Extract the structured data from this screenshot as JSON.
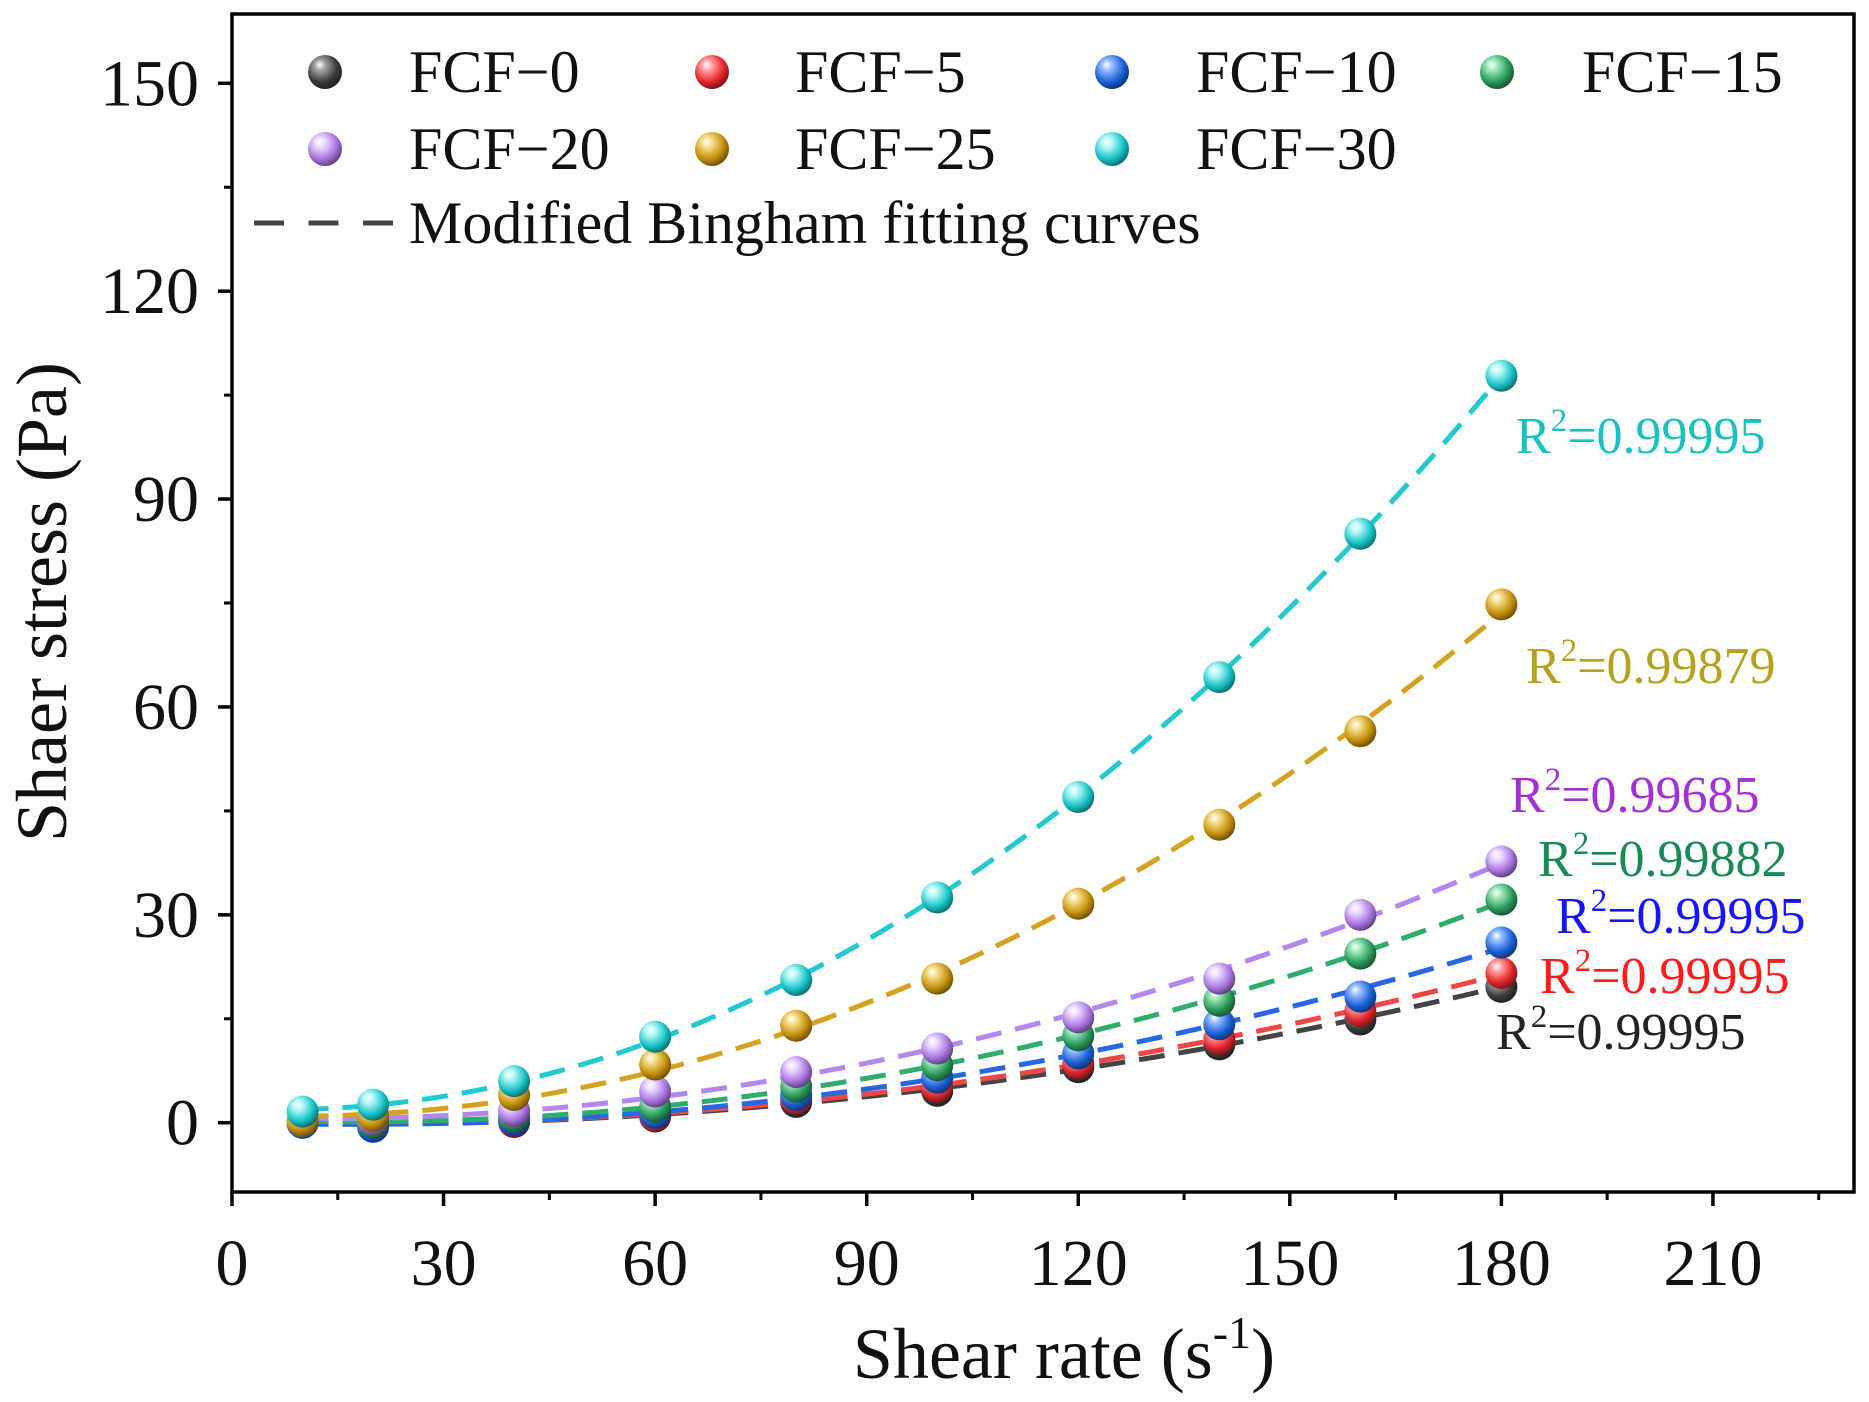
{
  "chart_data": {
    "type": "scatter",
    "xlabel": "Shear rate (s",
    "xlabel_sup": "-1",
    "xlabel_end": ")",
    "ylabel": "Shaer stress (Pa)",
    "xlim": [
      0,
      230
    ],
    "ylim": [
      -10,
      160
    ],
    "x_ticks": [
      0,
      30,
      60,
      90,
      120,
      150,
      180,
      210
    ],
    "y_ticks": [
      0,
      30,
      60,
      90,
      120,
      150
    ],
    "grid": false,
    "legend_position": "top",
    "fit_legend": "Modified Bingham fitting curves",
    "fit_legend_color": "#444444",
    "x": [
      10,
      20,
      40,
      60,
      80,
      100,
      120,
      140,
      160,
      180
    ],
    "series": [
      {
        "name": "FCF−0",
        "values": [
          0.0,
          -0.3,
          0.1,
          0.9,
          3.0,
          4.6,
          8.0,
          11.3,
          14.9,
          19.6
        ],
        "color": "#3a3a3a",
        "light": "#a0a0a0",
        "line": "#444444",
        "r2": {
          "prefix": "R",
          "sup": "2",
          "value": "=0.99995"
        },
        "r2_color": "#222222"
      },
      {
        "name": "FCF−5",
        "values": [
          0.0,
          -0.2,
          0.2,
          1.0,
          3.5,
          5.2,
          8.6,
          12.1,
          16.1,
          21.6
        ],
        "color": "#e3262b",
        "light": "#ffa0a0",
        "line": "#ef4646",
        "r2": {
          "prefix": "R",
          "sup": "2",
          "value": "=0.99995"
        },
        "r2_color": "#ff1a1a"
      },
      {
        "name": "FCF−10",
        "values": [
          0.0,
          -0.6,
          0.4,
          1.4,
          4.0,
          6.5,
          10.0,
          14.2,
          18.2,
          26.0
        ],
        "color": "#1b5fd8",
        "light": "#93bbff",
        "line": "#2866e6",
        "r2": {
          "prefix": "R",
          "sup": "2",
          "value": "=0.99995"
        },
        "r2_color": "#1414ff"
      },
      {
        "name": "FCF−15",
        "values": [
          0.1,
          0.0,
          1.0,
          2.3,
          5.2,
          8.3,
          12.6,
          17.6,
          24.4,
          32.2
        ],
        "color": "#28995a",
        "light": "#9ce8bb",
        "line": "#2fae6b",
        "r2": {
          "prefix": "R",
          "sup": "2",
          "value": "=0.99882"
        },
        "r2_color": "#178a55"
      },
      {
        "name": "FCF−20",
        "values": [
          0.2,
          0.5,
          1.7,
          4.5,
          7.3,
          10.7,
          15.2,
          20.8,
          30.0,
          37.7
        ],
        "color": "#a873e0",
        "light": "#ead8ff",
        "line": "#b487ee",
        "r2": {
          "prefix": "R",
          "sup": "2",
          "value": "=0.99685"
        },
        "r2_color": "#a32fd6"
      },
      {
        "name": "FCF−25",
        "values": [
          0.3,
          1.0,
          4.0,
          8.4,
          14.0,
          20.8,
          31.6,
          43.0,
          56.5,
          74.8
        ],
        "color": "#c28f0a",
        "light": "#f6dc8a",
        "line": "#d4a21e",
        "r2": {
          "prefix": "R",
          "sup": "2",
          "value": "=0.99879"
        },
        "r2_color": "#b5a21c"
      },
      {
        "name": "FCF−30",
        "values": [
          1.6,
          2.6,
          6.0,
          12.4,
          20.6,
          32.5,
          47.0,
          64.3,
          85.0,
          107.8
        ],
        "color": "#15c2c6",
        "light": "#b4f7f7",
        "line": "#22c9cf",
        "r2": {
          "prefix": "R",
          "sup": "2",
          "value": "=0.99995"
        },
        "r2_color": "#19c2c2"
      }
    ]
  }
}
